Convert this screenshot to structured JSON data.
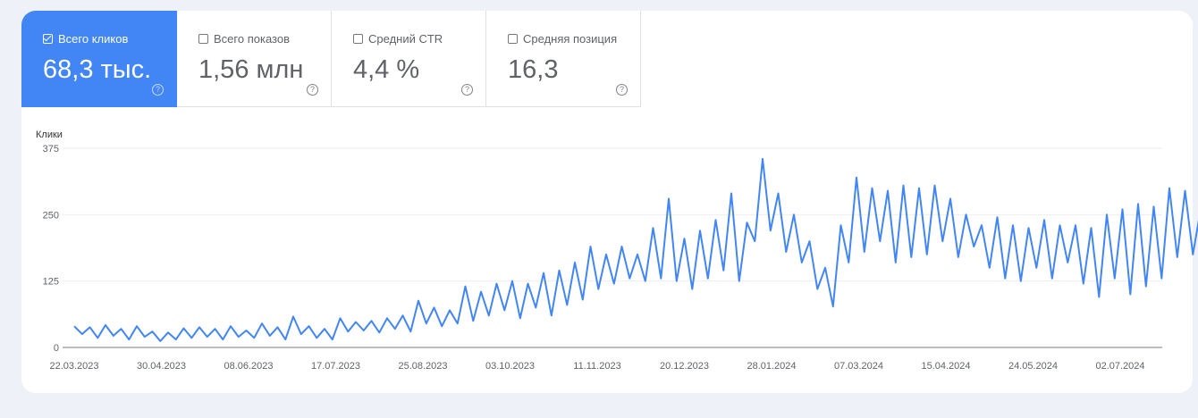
{
  "metrics": [
    {
      "label": "Всего кликов",
      "value": "68,3 тыс.",
      "checked": true
    },
    {
      "label": "Всего показов",
      "value": "1,56 млн",
      "checked": false
    },
    {
      "label": "Средний CTR",
      "value": "4,4 %",
      "checked": false
    },
    {
      "label": "Средняя позиция",
      "value": "16,3",
      "checked": false
    }
  ],
  "help_glyph": "?",
  "colors": {
    "accent": "#4285f4",
    "line": "#4285f4"
  },
  "chart_data": {
    "type": "line",
    "ylabel": "Клики",
    "ylim": [
      0,
      375
    ],
    "yticks": [
      "0",
      "125",
      "250",
      "375"
    ],
    "ytick_values": [
      0,
      125,
      250,
      375
    ],
    "xticks": [
      "22.03.2023",
      "30.04.2023",
      "08.06.2023",
      "17.07.2023",
      "25.08.2023",
      "03.10.2023",
      "11.11.2023",
      "20.12.2023",
      "28.01.2024",
      "07.03.2024",
      "15.04.2024",
      "24.05.2024",
      "02.07.2024"
    ],
    "x_range_days": [
      0,
      488
    ],
    "series": [
      {
        "name": "Клики",
        "sample_every_days": 3.5,
        "values": [
          40,
          25,
          38,
          18,
          42,
          22,
          35,
          15,
          40,
          20,
          30,
          12,
          28,
          15,
          36,
          18,
          38,
          20,
          35,
          15,
          40,
          20,
          32,
          18,
          45,
          22,
          38,
          15,
          58,
          25,
          40,
          18,
          35,
          15,
          55,
          30,
          48,
          32,
          50,
          28,
          55,
          35,
          60,
          30,
          88,
          45,
          75,
          40,
          70,
          45,
          115,
          50,
          105,
          60,
          120,
          70,
          125,
          55,
          120,
          75,
          140,
          60,
          145,
          80,
          160,
          90,
          190,
          110,
          175,
          120,
          190,
          130,
          175,
          125,
          225,
          130,
          280,
          125,
          205,
          110,
          220,
          130,
          240,
          145,
          290,
          125,
          235,
          200,
          355,
          220,
          290,
          180,
          250,
          160,
          200,
          110,
          150,
          77,
          230,
          160,
          320,
          180,
          300,
          200,
          295,
          160,
          305,
          170,
          300,
          175,
          305,
          200,
          280,
          170,
          250,
          190,
          230,
          150,
          245,
          130,
          230,
          125,
          225,
          150,
          240,
          130,
          230,
          160,
          230,
          120,
          225,
          95,
          250,
          130,
          260,
          100,
          270,
          115,
          265,
          130,
          300,
          170,
          295,
          175,
          260,
          180,
          245
        ]
      }
    ]
  }
}
